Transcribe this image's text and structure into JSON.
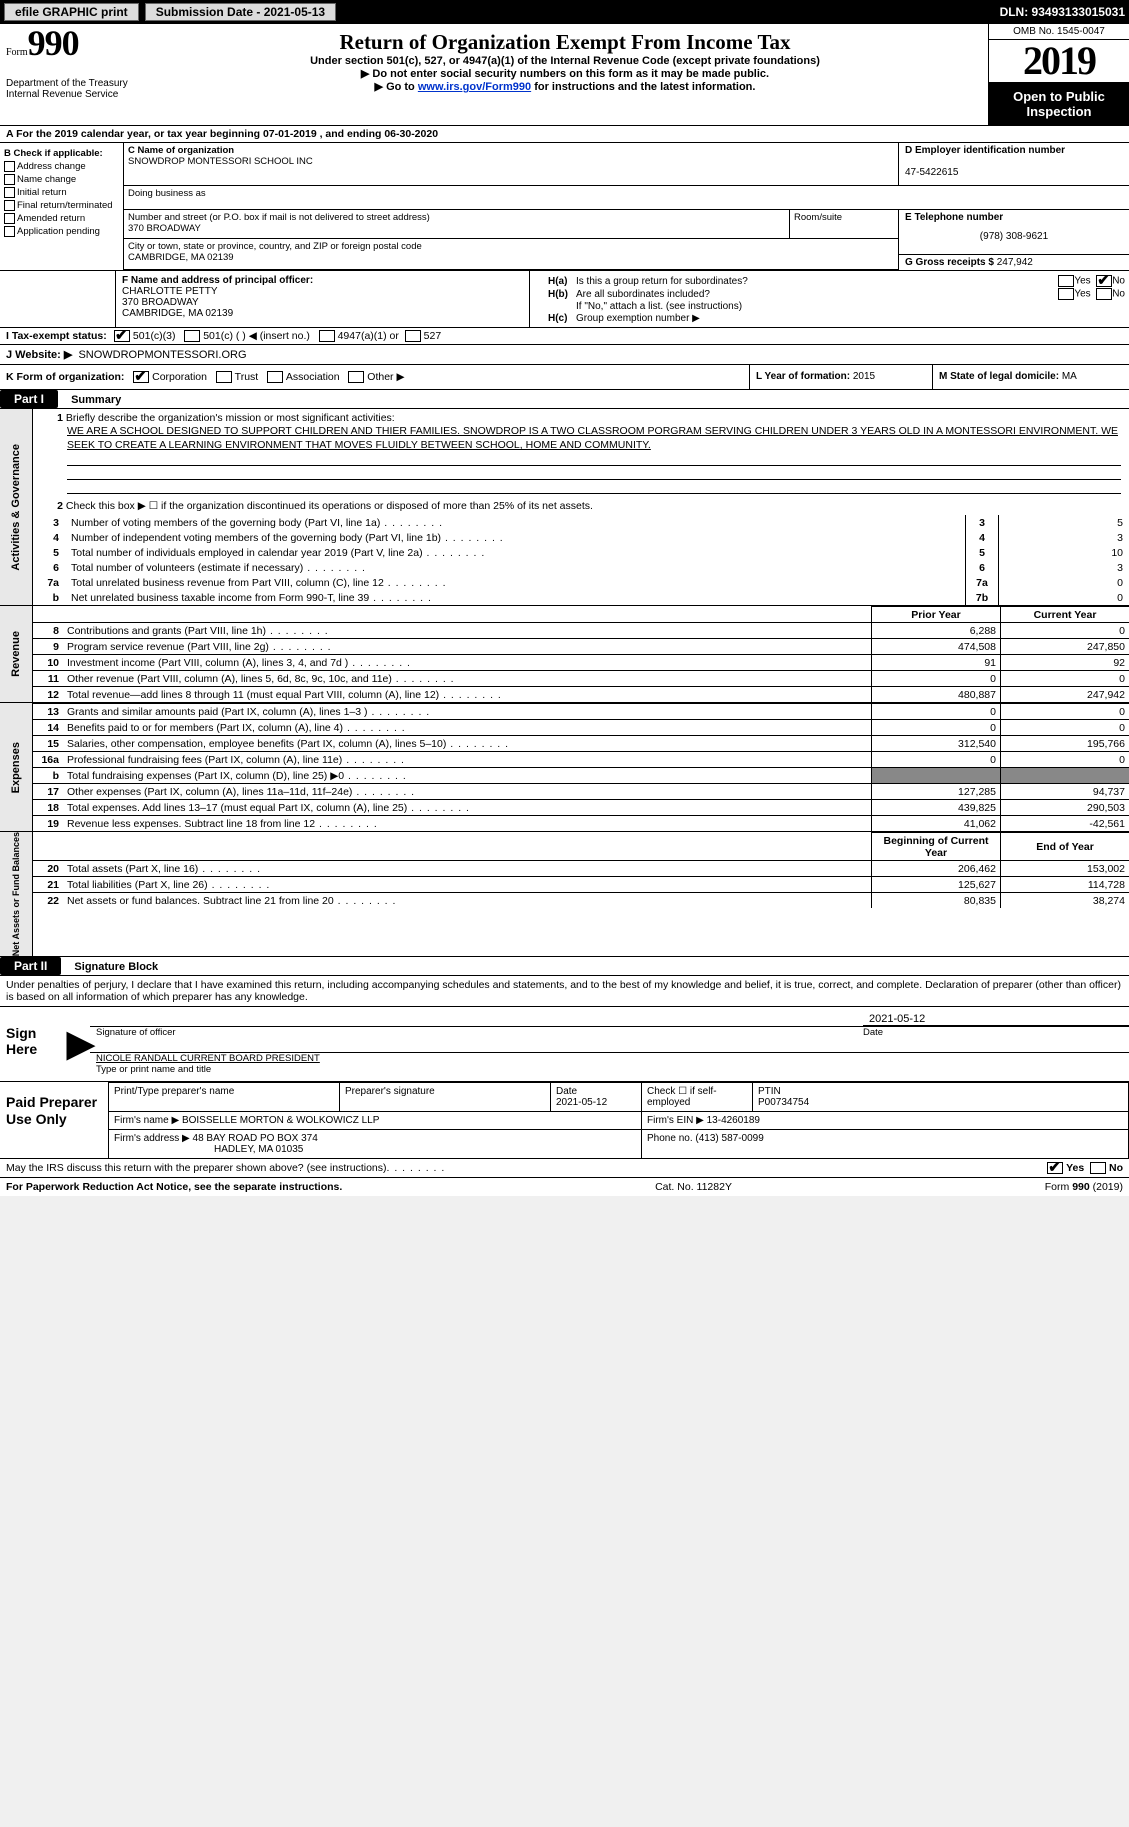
{
  "colors": {
    "black": "#000000",
    "white": "#ffffff",
    "button_bg": "#dcdcdc",
    "link": "#0033cc",
    "side_bg": "#e8e8e8",
    "shaded": "#888888"
  },
  "topbar": {
    "efile_label": "efile GRAPHIC print",
    "submission_label": "Submission Date - 2021-05-13",
    "dln_label": "DLN: 93493133015031"
  },
  "header": {
    "form_small": "Form",
    "form_big": "990",
    "dept": "Department of the Treasury\nInternal Revenue Service",
    "title": "Return of Organization Exempt From Income Tax",
    "subtitle": "Under section 501(c), 527, or 4947(a)(1) of the Internal Revenue Code (except private foundations)",
    "instr1": "▶ Do not enter social security numbers on this form as it may be made public.",
    "instr2_pre": "▶ Go to ",
    "instr2_link": "www.irs.gov/Form990",
    "instr2_post": " for instructions and the latest information.",
    "omb": "OMB No. 1545-0047",
    "year": "2019",
    "open_inspection": "Open to Public Inspection"
  },
  "rowA": "A For the 2019 calendar year, or tax year beginning 07-01-2019   , and ending 06-30-2020",
  "colB": {
    "label": "B Check if applicable:",
    "items": [
      "Address change",
      "Name change",
      "Initial return",
      "Final return/terminated",
      "Amended return",
      "Application pending"
    ]
  },
  "colC": {
    "name_label": "C Name of organization",
    "name": "SNOWDROP MONTESSORI SCHOOL INC",
    "dba_label": "Doing business as",
    "street_label": "Number and street (or P.O. box if mail is not delivered to street address)",
    "street": "370 BROADWAY",
    "room_label": "Room/suite",
    "city_label": "City or town, state or province, country, and ZIP or foreign postal code",
    "city": "CAMBRIDGE, MA  02139"
  },
  "colD": {
    "label": "D Employer identification number",
    "value": "47-5422615"
  },
  "colE": {
    "label": "E Telephone number",
    "value": "(978) 308-9621"
  },
  "colG": {
    "label": "G Gross receipts $",
    "value": "247,942"
  },
  "colF": {
    "label": "F  Name and address of principal officer:",
    "name": "CHARLOTTE PETTY",
    "street": "370 BROADWAY",
    "city": "CAMBRIDGE, MA  02139"
  },
  "colH": {
    "a_label": "H(a)",
    "a_text": "Is this a group return for subordinates?",
    "b_label": "H(b)",
    "b_text": "Are all subordinates included?",
    "note": "If \"No,\" attach a list. (see instructions)",
    "c_label": "H(c)",
    "c_text": "Group exemption number ▶",
    "yes": "Yes",
    "no": "No"
  },
  "rowI": {
    "label": "I   Tax-exempt status:",
    "o1": "501(c)(3)",
    "o2": "501(c) (  ) ◀ (insert no.)",
    "o3": "4947(a)(1) or",
    "o4": "527"
  },
  "rowJ": {
    "label": "J   Website: ▶",
    "value": "SNOWDROPMONTESSORI.ORG"
  },
  "rowK": {
    "label": "K Form of organization:",
    "o1": "Corporation",
    "o2": "Trust",
    "o3": "Association",
    "o4": "Other ▶"
  },
  "colL": {
    "label": "L Year of formation:",
    "value": "2015"
  },
  "colM": {
    "label": "M State of legal domicile:",
    "value": "MA"
  },
  "part1": {
    "tag": "Part I",
    "title": "Summary",
    "line1_label": "1",
    "line1_lead": "Briefly describe the organization's mission or most significant activities:",
    "mission": "WE ARE A SCHOOL DESIGNED TO SUPPORT CHILDREN AND THIER FAMILIES. SNOWDROP IS A TWO CLASSROOM PORGRAM SERVING CHILDREN UNDER 3 YEARS OLD IN A MONTESSORI ENVIRONMENT. WE SEEK TO CREATE A LEARNING ENVIRONMENT THAT MOVES FLUIDLY BETWEEN SCHOOL, HOME AND COMMUNITY.",
    "line2": "Check this box ▶ ☐  if the organization discontinued its operations or disposed of more than 25% of its net assets.",
    "governance_label": "Activities & Governance",
    "rows": [
      {
        "n": "3",
        "desc": "Number of voting members of the governing body (Part VI, line 1a)",
        "box": "3",
        "val": "5"
      },
      {
        "n": "4",
        "desc": "Number of independent voting members of the governing body (Part VI, line 1b)",
        "box": "4",
        "val": "3"
      },
      {
        "n": "5",
        "desc": "Total number of individuals employed in calendar year 2019 (Part V, line 2a)",
        "box": "5",
        "val": "10"
      },
      {
        "n": "6",
        "desc": "Total number of volunteers (estimate if necessary)",
        "box": "6",
        "val": "3"
      },
      {
        "n": "7a",
        "desc": "Total unrelated business revenue from Part VIII, column (C), line 12",
        "box": "7a",
        "val": "0"
      },
      {
        "n": "b",
        "desc": "Net unrelated business taxable income from Form 990-T, line 39",
        "box": "7b",
        "val": "0"
      }
    ]
  },
  "revenue": {
    "label": "Revenue",
    "hdr_py": "Prior Year",
    "hdr_cy": "Current Year",
    "rows": [
      {
        "n": "8",
        "desc": "Contributions and grants (Part VIII, line 1h)",
        "py": "6,288",
        "cy": "0"
      },
      {
        "n": "9",
        "desc": "Program service revenue (Part VIII, line 2g)",
        "py": "474,508",
        "cy": "247,850"
      },
      {
        "n": "10",
        "desc": "Investment income (Part VIII, column (A), lines 3, 4, and 7d )",
        "py": "91",
        "cy": "92"
      },
      {
        "n": "11",
        "desc": "Other revenue (Part VIII, column (A), lines 5, 6d, 8c, 9c, 10c, and 11e)",
        "py": "0",
        "cy": "0"
      },
      {
        "n": "12",
        "desc": "Total revenue—add lines 8 through 11 (must equal Part VIII, column (A), line 12)",
        "py": "480,887",
        "cy": "247,942"
      }
    ]
  },
  "expenses": {
    "label": "Expenses",
    "rows": [
      {
        "n": "13",
        "desc": "Grants and similar amounts paid (Part IX, column (A), lines 1–3 )",
        "py": "0",
        "cy": "0"
      },
      {
        "n": "14",
        "desc": "Benefits paid to or for members (Part IX, column (A), line 4)",
        "py": "0",
        "cy": "0"
      },
      {
        "n": "15",
        "desc": "Salaries, other compensation, employee benefits (Part IX, column (A), lines 5–10)",
        "py": "312,540",
        "cy": "195,766"
      },
      {
        "n": "16a",
        "desc": "Professional fundraising fees (Part IX, column (A), line 11e)",
        "py": "0",
        "cy": "0"
      },
      {
        "n": "b",
        "desc": "Total fundraising expenses (Part IX, column (D), line 25) ▶0",
        "py": "__shade__",
        "cy": "__shade__"
      },
      {
        "n": "17",
        "desc": "Other expenses (Part IX, column (A), lines 11a–11d, 11f–24e)",
        "py": "127,285",
        "cy": "94,737"
      },
      {
        "n": "18",
        "desc": "Total expenses. Add lines 13–17 (must equal Part IX, column (A), line 25)",
        "py": "439,825",
        "cy": "290,503"
      },
      {
        "n": "19",
        "desc": "Revenue less expenses. Subtract line 18 from line 12",
        "py": "41,062",
        "cy": "-42,561"
      }
    ]
  },
  "net": {
    "label": "Net Assets or Fund Balances",
    "hdr_py": "Beginning of Current Year",
    "hdr_cy": "End of Year",
    "rows": [
      {
        "n": "20",
        "desc": "Total assets (Part X, line 16)",
        "py": "206,462",
        "cy": "153,002"
      },
      {
        "n": "21",
        "desc": "Total liabilities (Part X, line 26)",
        "py": "125,627",
        "cy": "114,728"
      },
      {
        "n": "22",
        "desc": "Net assets or fund balances. Subtract line 21 from line 20",
        "py": "80,835",
        "cy": "38,274"
      }
    ]
  },
  "part2": {
    "tag": "Part II",
    "title": "Signature Block",
    "declaration": "Under penalties of perjury, I declare that I have examined this return, including accompanying schedules and statements, and to the best of my knowledge and belief, it is true, correct, and complete. Declaration of preparer (other than officer) is based on all information of which preparer has any knowledge.",
    "sign_here": "Sign Here",
    "sig_officer": "Signature of officer",
    "sig_date": "2021-05-12",
    "date_lbl": "Date",
    "name_title": "NICOLE RANDALL  CURRENT BOARD PRESIDENT",
    "type_name": "Type or print name and title"
  },
  "paid": {
    "label": "Paid Preparer Use Only",
    "r1": {
      "c1_lbl": "Print/Type preparer's name",
      "c2_lbl": "Preparer's signature",
      "c3_lbl": "Date",
      "c3_val": "2021-05-12",
      "c4_lbl": "Check ☐ if self-employed",
      "c5_lbl": "PTIN",
      "c5_val": "P00734754"
    },
    "r2": {
      "c1_lbl": "Firm's name    ▶",
      "c1_val": "BOISSELLE MORTON & WOLKOWICZ LLP",
      "c2_lbl": "Firm's EIN ▶",
      "c2_val": "13-4260189"
    },
    "r3": {
      "c1_lbl": "Firm's address ▶",
      "c1_val1": "48 BAY ROAD PO BOX 374",
      "c1_val2": "HADLEY, MA  01035",
      "c2_lbl": "Phone no.",
      "c2_val": "(413) 587-0099"
    }
  },
  "footer": {
    "line1_a": "May the IRS discuss this return with the preparer shown above? (see instructions)",
    "yes": "Yes",
    "no": "No",
    "line2_a": "For Paperwork Reduction Act Notice, see the separate instructions.",
    "line2_b": "Cat. No. 11282Y",
    "line2_c": "Form 990 (2019)"
  }
}
